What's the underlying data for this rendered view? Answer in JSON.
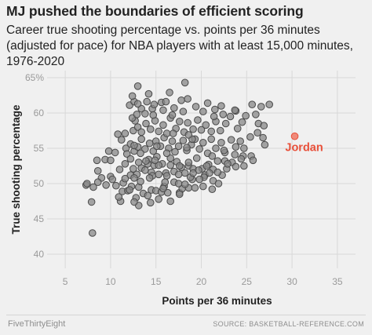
{
  "title": "MJ pushed the boundaries of efficient scoring",
  "subtitle": "Career true shooting percentage vs. points per 36 minutes (adjusted for pace) for NBA players with at least 15,000 minutes, 1976-2020",
  "footer": {
    "brand": "FiveThirtyEight",
    "source": "SOURCE: BASKETBALL-REFERENCE.COM"
  },
  "colors": {
    "background": "#f0f0f0",
    "grid": "#d8d8d8",
    "point_fill": "#888888",
    "point_stroke": "#4a4a4a",
    "highlight": "#e8503a",
    "highlight_fill": "#f08a7a"
  },
  "chart_data": {
    "type": "scatter",
    "xlabel": "Points per 36 minutes",
    "ylabel": "True shooting percentage",
    "xlim": [
      3,
      37
    ],
    "ylim": [
      38,
      66
    ],
    "xticks": [
      "5",
      "10",
      "15",
      "20",
      "25",
      "30",
      "35"
    ],
    "yticks": [
      "40",
      "45",
      "50",
      "55",
      "60",
      "65%"
    ],
    "grid": true,
    "highlight": {
      "label": "Jordan",
      "x": 30.3,
      "y": 56.7
    },
    "points": [
      [
        8,
        43.0
      ],
      [
        7.9,
        47.4
      ],
      [
        7.3,
        49.8
      ],
      [
        7.4,
        50.0
      ],
      [
        8.1,
        49.5
      ],
      [
        9.0,
        50.8
      ],
      [
        8.6,
        51.8
      ],
      [
        8.5,
        53.3
      ],
      [
        8.6,
        50.2
      ],
      [
        9.5,
        49.8
      ],
      [
        10.0,
        51.0
      ],
      [
        11.1,
        47.5
      ],
      [
        10.9,
        48.1
      ],
      [
        11.3,
        48.9
      ],
      [
        9.4,
        53.4
      ],
      [
        10.0,
        53.3
      ],
      [
        9.8,
        54.6
      ],
      [
        10.5,
        54.4
      ],
      [
        11.7,
        55.0
      ],
      [
        11.2,
        56.2
      ],
      [
        10.8,
        57.0
      ],
      [
        11.6,
        57.1
      ],
      [
        12.7,
        58.9
      ],
      [
        12.4,
        59.3
      ],
      [
        12.9,
        59.8
      ],
      [
        12.1,
        61.1
      ],
      [
        12.6,
        61.6
      ],
      [
        14.0,
        61.6
      ],
      [
        13.4,
        60.6
      ],
      [
        13.0,
        63.8
      ],
      [
        14.6,
        60.6
      ],
      [
        14.8,
        61.2
      ],
      [
        15.6,
        61.5
      ],
      [
        16.1,
        61.6
      ],
      [
        16.5,
        62.9
      ],
      [
        17.8,
        61.8
      ],
      [
        18.5,
        62.0
      ],
      [
        18.2,
        64.3
      ],
      [
        20.7,
        61.4
      ],
      [
        21.5,
        60.5
      ],
      [
        22.2,
        61.0
      ],
      [
        23.8,
        60.3
      ],
      [
        25.6,
        61.2
      ],
      [
        26.6,
        60.9
      ],
      [
        27.5,
        61.2
      ],
      [
        26.3,
        58.5
      ],
      [
        26.9,
        58.2
      ],
      [
        27.0,
        55.5
      ],
      [
        26.8,
        56.5
      ],
      [
        24.6,
        53.9
      ],
      [
        25.5,
        53.9
      ],
      [
        24.4,
        53.5
      ],
      [
        24.7,
        52.5
      ],
      [
        25.7,
        53.3
      ],
      [
        11.4,
        50.1
      ],
      [
        11.9,
        49.0
      ],
      [
        12.3,
        49.6
      ],
      [
        12.8,
        48.0
      ],
      [
        13.1,
        49.5
      ],
      [
        13.6,
        48.6
      ],
      [
        14.1,
        48.3
      ],
      [
        14.5,
        49.1
      ],
      [
        15.0,
        49.0
      ],
      [
        15.6,
        48.8
      ],
      [
        15.9,
        49.6
      ],
      [
        16.3,
        48.7
      ],
      [
        17.6,
        48.7
      ],
      [
        17.9,
        49.3
      ],
      [
        18.6,
        49.4
      ],
      [
        19.3,
        49.4
      ],
      [
        20.2,
        49.6
      ],
      [
        21.2,
        49.2
      ],
      [
        11.6,
        50.7
      ],
      [
        12.2,
        51.2
      ],
      [
        12.5,
        52.1
      ],
      [
        12.9,
        51.3
      ],
      [
        13.4,
        52.2
      ],
      [
        13.1,
        53.0
      ],
      [
        14.2,
        53.4
      ],
      [
        14.5,
        51.6
      ],
      [
        14.1,
        52.8
      ],
      [
        14.8,
        52.6
      ],
      [
        15.3,
        51.3
      ],
      [
        15.1,
        53.8
      ],
      [
        15.7,
        52.8
      ],
      [
        16.1,
        51.5
      ],
      [
        16.6,
        52.6
      ],
      [
        17.0,
        51.7
      ],
      [
        17.3,
        53.1
      ],
      [
        17.8,
        52.3
      ],
      [
        18.2,
        51.5
      ],
      [
        18.6,
        52.5
      ],
      [
        19.1,
        52.1
      ],
      [
        19.5,
        53.6
      ],
      [
        20.1,
        52.1
      ],
      [
        20.4,
        51.2
      ],
      [
        20.8,
        52.7
      ],
      [
        21.3,
        52.0
      ],
      [
        21.8,
        53.2
      ],
      [
        22.3,
        51.2
      ],
      [
        22.8,
        52.1
      ],
      [
        11.8,
        54.2
      ],
      [
        12.2,
        55.6
      ],
      [
        12.6,
        54.6
      ],
      [
        13.0,
        55.2
      ],
      [
        13.4,
        56.3
      ],
      [
        13.8,
        54.9
      ],
      [
        14.3,
        55.7
      ],
      [
        14.7,
        54.6
      ],
      [
        15.0,
        56.0
      ],
      [
        15.5,
        55.3
      ],
      [
        15.9,
        56.5
      ],
      [
        16.4,
        55.0
      ],
      [
        16.8,
        56.0
      ],
      [
        17.1,
        54.5
      ],
      [
        17.5,
        55.3
      ],
      [
        18.0,
        56.1
      ],
      [
        18.4,
        54.7
      ],
      [
        18.9,
        55.5
      ],
      [
        19.3,
        56.3
      ],
      [
        19.8,
        54.9
      ],
      [
        20.2,
        55.8
      ],
      [
        20.7,
        54.3
      ],
      [
        21.1,
        56.3
      ],
      [
        21.6,
        55.0
      ],
      [
        22.2,
        55.8
      ],
      [
        22.6,
        54.4
      ],
      [
        23.3,
        56.2
      ],
      [
        23.8,
        55.2
      ],
      [
        24.3,
        56.0
      ],
      [
        12.5,
        57.5
      ],
      [
        13.0,
        58.0
      ],
      [
        13.4,
        57.3
      ],
      [
        13.9,
        58.5
      ],
      [
        14.4,
        57.7
      ],
      [
        14.9,
        58.9
      ],
      [
        15.3,
        57.4
      ],
      [
        15.8,
        58.3
      ],
      [
        16.2,
        57.1
      ],
      [
        16.6,
        59.3
      ],
      [
        17.2,
        57.8
      ],
      [
        17.6,
        58.8
      ],
      [
        18.1,
        57.3
      ],
      [
        18.5,
        58.6
      ],
      [
        19.1,
        57.7
      ],
      [
        19.6,
        59.0
      ],
      [
        20.0,
        57.6
      ],
      [
        20.5,
        58.3
      ],
      [
        21.1,
        57.4
      ],
      [
        21.6,
        58.8
      ],
      [
        22.1,
        57.5
      ],
      [
        22.7,
        58.5
      ],
      [
        23.2,
        59.5
      ],
      [
        24.0,
        57.8
      ],
      [
        24.5,
        58.7
      ],
      [
        13.9,
        53.2
      ],
      [
        16.6,
        53.6
      ],
      [
        19.0,
        50.6
      ],
      [
        15.8,
        49.3
      ],
      [
        16.2,
        51.1
      ],
      [
        17.0,
        50.2
      ],
      [
        18.6,
        53.0
      ],
      [
        15.1,
        55.3
      ],
      [
        14.6,
        51.1
      ],
      [
        19.7,
        51.9
      ],
      [
        21.3,
        50.4
      ],
      [
        22.6,
        53.2
      ],
      [
        21.9,
        50.0
      ],
      [
        20.3,
        50.9
      ],
      [
        18.8,
        50.9
      ],
      [
        17.6,
        48.5
      ],
      [
        16.6,
        47.5
      ],
      [
        15.3,
        47.8
      ],
      [
        14.4,
        47.3
      ],
      [
        13.1,
        46.9
      ],
      [
        12.6,
        47.4
      ],
      [
        14.3,
        50.8
      ],
      [
        16.0,
        50.2
      ],
      [
        17.5,
        51.3
      ],
      [
        19.1,
        51.5
      ],
      [
        20.6,
        52.5
      ],
      [
        15.3,
        52.6
      ],
      [
        14.9,
        53.3
      ],
      [
        17.6,
        52.5
      ],
      [
        18.4,
        55.1
      ],
      [
        19.0,
        56.3
      ],
      [
        16.2,
        54.3
      ],
      [
        13.8,
        51.9
      ],
      [
        13.3,
        50.3
      ],
      [
        12.6,
        50.8
      ],
      [
        12.1,
        49.1
      ],
      [
        10.6,
        49.7
      ],
      [
        10.2,
        50.6
      ],
      [
        11.0,
        52.0
      ],
      [
        11.6,
        52.8
      ],
      [
        12.2,
        53.5
      ],
      [
        12.6,
        55.4
      ],
      [
        13.3,
        54.3
      ],
      [
        16.9,
        57.1
      ],
      [
        18.6,
        56.9
      ],
      [
        21.2,
        53.9
      ],
      [
        22.5,
        54.7
      ],
      [
        23.7,
        54.1
      ],
      [
        23.4,
        53.0
      ],
      [
        24.7,
        55.0
      ],
      [
        25.4,
        56.6
      ],
      [
        26.2,
        57.2
      ],
      [
        26.0,
        59.8
      ],
      [
        24.9,
        59.6
      ],
      [
        23.7,
        60.4
      ],
      [
        22.4,
        59.8
      ],
      [
        21.4,
        59.5
      ],
      [
        20.2,
        60.2
      ],
      [
        19.4,
        60.9
      ],
      [
        18.0,
        60.2
      ],
      [
        17.0,
        60.7
      ],
      [
        15.8,
        60.4
      ],
      [
        14.7,
        59.7
      ],
      [
        13.8,
        59.9
      ],
      [
        13.0,
        61.3
      ],
      [
        12.4,
        62.4
      ],
      [
        14.2,
        62.7
      ],
      [
        16.8,
        59.7
      ],
      [
        17.5,
        50.0
      ],
      [
        18.2,
        49.9
      ],
      [
        19.8,
        50.6
      ],
      [
        20.9,
        51.5
      ],
      [
        21.8,
        51.6
      ],
      [
        22.9,
        52.8
      ],
      [
        23.8,
        52.4
      ]
    ]
  }
}
